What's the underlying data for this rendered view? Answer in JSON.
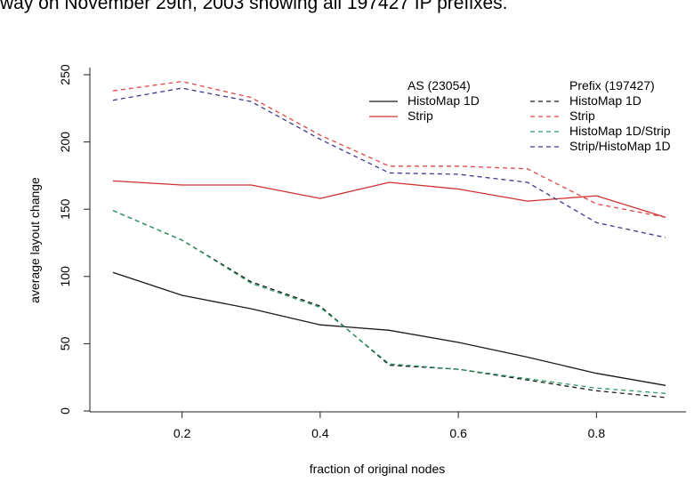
{
  "caption": "way on November 29th, 2003 showing all 197427 IP prefixes.",
  "chart_data": {
    "type": "line",
    "title": "",
    "xlabel": "fraction of original nodes",
    "ylabel": "average layout change",
    "xlim": [
      0.1,
      0.9
    ],
    "ylim": [
      0,
      250
    ],
    "x_ticks": [
      "0.2",
      "0.4",
      "0.6",
      "0.8"
    ],
    "y_ticks": [
      "0",
      "50",
      "100",
      "150",
      "200",
      "250"
    ],
    "x": [
      0.1,
      0.2,
      0.3,
      0.4,
      0.5,
      0.6,
      0.7,
      0.8,
      0.9
    ],
    "legend": {
      "position": "top-right",
      "group_as_title": "AS (23054)",
      "group_prefix_title": "Prefix (197427)"
    },
    "series": [
      {
        "name": "HistoMap 1D",
        "group": "AS (23054)",
        "color": "#1a1a1a",
        "dash": "solid",
        "values": [
          103,
          86,
          76,
          64,
          60,
          51,
          40,
          28,
          19
        ]
      },
      {
        "name": "Strip",
        "group": "AS (23054)",
        "color": "#d03030",
        "dash": "solid",
        "values": [
          171,
          168,
          168,
          158,
          170,
          165,
          156,
          160,
          144
        ]
      },
      {
        "name": "HistoMap 1D",
        "group": "Prefix (197427)",
        "color": "#1a1a1a",
        "dash": "dashed",
        "values": [
          149,
          127,
          96,
          78,
          34,
          31,
          23,
          15,
          10
        ]
      },
      {
        "name": "Strip",
        "group": "Prefix (197427)",
        "color": "#e04848",
        "dash": "dashed",
        "values": [
          238,
          245,
          233,
          205,
          182,
          182,
          180,
          154,
          144
        ]
      },
      {
        "name": "HistoMap 1D/Strip",
        "group": "Prefix (197427)",
        "color": "#2a9a60",
        "dash": "dashed",
        "values": [
          149,
          127,
          95,
          77,
          35,
          31,
          24,
          17,
          13
        ]
      },
      {
        "name": "Strip/HistoMap 1D",
        "group": "Prefix (197427)",
        "color": "#3a3a8a",
        "dash": "dashed",
        "values": [
          231,
          240,
          230,
          202,
          177,
          176,
          170,
          140,
          129
        ]
      }
    ]
  }
}
